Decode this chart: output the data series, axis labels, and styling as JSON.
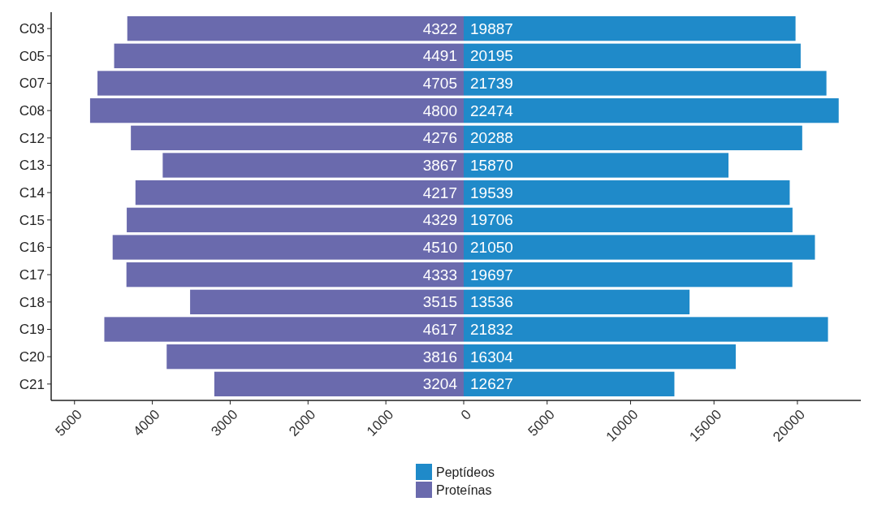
{
  "chart_data": [
    {
      "type": "bar",
      "orientation": "horizontal",
      "categories": [
        "C03",
        "C05",
        "C07",
        "C08",
        "C12",
        "C13",
        "C14",
        "C15",
        "C16",
        "C17",
        "C18",
        "C19",
        "C20",
        "C21"
      ],
      "series": [
        {
          "name": "Proteínas",
          "color": "#6a6aad",
          "values": [
            4322,
            4491,
            4705,
            4800,
            4276,
            3867,
            4217,
            4329,
            4510,
            4333,
            3515,
            4617,
            3816,
            3204
          ]
        }
      ],
      "xlim": [
        5300,
        0
      ],
      "xticks": [
        5000,
        4000,
        3000,
        2000,
        1000,
        0
      ],
      "data_labels": true,
      "legend": "bottom"
    },
    {
      "type": "bar",
      "orientation": "horizontal",
      "categories": [
        null,
        null,
        null,
        null,
        null,
        null,
        null,
        null,
        null,
        null,
        null,
        null,
        null,
        null
      ],
      "series": [
        {
          "name": "Peptídeos",
          "color": "#1f8ac9",
          "values": [
            19887,
            20195,
            21739,
            22474,
            20288,
            15870,
            19539,
            19706,
            21050,
            19697,
            13536,
            21832,
            16304,
            12627
          ]
        }
      ],
      "xlim": [
        0,
        23800
      ],
      "xticks": [
        5000,
        10000,
        15000,
        20000
      ],
      "data_labels": true,
      "legend": "bottom",
      "tick_labels": "x"
    }
  ]
}
